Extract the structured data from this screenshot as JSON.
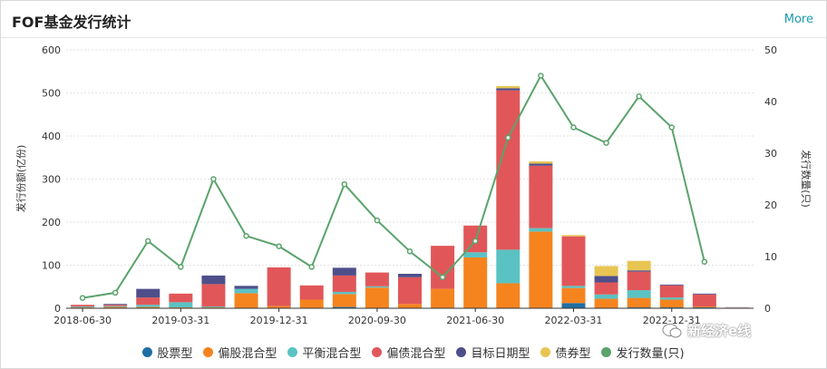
{
  "header": {
    "title": "FOF基金发行统计",
    "more_label": "More"
  },
  "watermark": {
    "text": "新经济e线",
    "icon": "chat-bubble-icon"
  },
  "chart_data": {
    "type": "bar+line",
    "title": "",
    "ylabel_left": "发行份额(亿份)",
    "ylabel_right": "发行数量(只)",
    "ylim_left": [
      0,
      600
    ],
    "ylim_right": [
      0,
      50
    ],
    "yticks_left": [
      0,
      100,
      200,
      300,
      400,
      500,
      600
    ],
    "yticks_right": [
      0,
      10,
      20,
      30,
      40,
      50
    ],
    "x": [
      "2018-06-30",
      "2018-09-30",
      "2018-12-31",
      "2019-03-31",
      "2019-06-30",
      "2019-09-30",
      "2019-12-31",
      "2020-03-31",
      "2020-06-30",
      "2020-09-30",
      "2020-12-31",
      "2021-03-31",
      "2021-06-30",
      "2021-09-30",
      "2021-12-31",
      "2022-03-31",
      "2022-06-30",
      "2022-09-30",
      "2022-12-31",
      "2023-03-31",
      "2023-06-30"
    ],
    "x_tick_labels": [
      "2018-06-30",
      "2019-03-31",
      "2019-12-31",
      "2020-09-30",
      "2021-06-30",
      "2022-03-31",
      "2022-12-31"
    ],
    "series": [
      {
        "name": "股票型",
        "type": "bar",
        "color": "#1f6fa3",
        "values": [
          0,
          0,
          0,
          0,
          0,
          0,
          0,
          0,
          3,
          0,
          0,
          0,
          0,
          0,
          0,
          12,
          0,
          2,
          2,
          2,
          0
        ]
      },
      {
        "name": "偏股混合型",
        "type": "bar",
        "color": "#f5841f",
        "values": [
          2,
          3,
          3,
          2,
          2,
          35,
          5,
          20,
          30,
          48,
          10,
          45,
          118,
          58,
          178,
          35,
          22,
          22,
          18,
          2,
          0
        ]
      },
      {
        "name": "平衡混合型",
        "type": "bar",
        "color": "#5ac2c3",
        "values": [
          2,
          2,
          5,
          12,
          2,
          10,
          0,
          0,
          5,
          3,
          0,
          0,
          12,
          78,
          8,
          5,
          10,
          18,
          5,
          0,
          0
        ]
      },
      {
        "name": "偏债混合型",
        "type": "bar",
        "color": "#e15759",
        "values": [
          4,
          3,
          17,
          20,
          52,
          0,
          90,
          33,
          38,
          32,
          62,
          100,
          62,
          370,
          145,
          115,
          28,
          43,
          28,
          28,
          3
        ]
      },
      {
        "name": "目标日期型",
        "type": "bar",
        "color": "#4e4f8a",
        "values": [
          0,
          2,
          20,
          0,
          20,
          7,
          0,
          0,
          18,
          0,
          8,
          0,
          0,
          5,
          5,
          0,
          15,
          3,
          2,
          2,
          0
        ]
      },
      {
        "name": "债券型",
        "type": "bar",
        "color": "#e8c552",
        "values": [
          0,
          0,
          0,
          0,
          0,
          0,
          0,
          0,
          0,
          0,
          0,
          0,
          0,
          5,
          5,
          3,
          23,
          22,
          0,
          0,
          0
        ]
      },
      {
        "name": "发行数量(只)",
        "type": "line",
        "axis": "right",
        "color": "#5aa36b",
        "values": [
          2,
          3,
          13,
          8,
          25,
          14,
          12,
          8,
          24,
          17,
          11,
          6,
          13,
          33,
          45,
          35,
          32,
          41,
          35,
          9,
          null
        ]
      }
    ],
    "legend_position": "bottom",
    "grid": true
  }
}
